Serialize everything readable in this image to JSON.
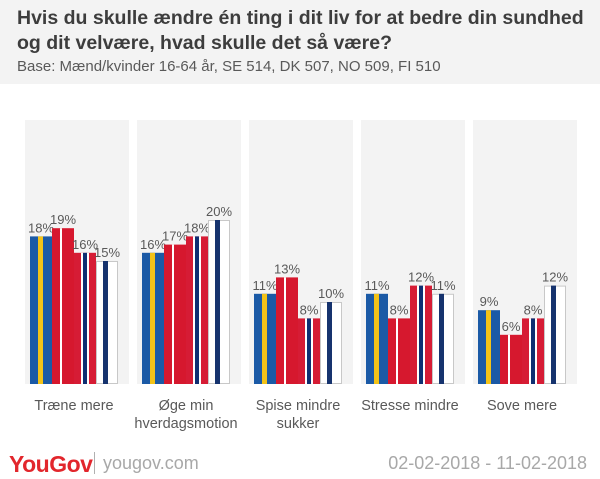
{
  "header": {
    "title": "Hvis du skulle ændre én ting i dit liv for at bedre din sundhed og dit velvære, hvad skulle det så være?",
    "subtitle": "Base: Mænd/kvinder 16-64 år, SE 514, DK 507, NO 509, FI 510"
  },
  "footer": {
    "logo": "YouGov",
    "url": "yougov.com",
    "date": "02-02-2018 - 11-02-2018"
  },
  "colors": {
    "se_blue": "#1b5aa6",
    "se_yellow": "#f3c318",
    "dk_red": "#d6182e",
    "no_red": "#d61c35",
    "no_blue": "#0f2f72",
    "fi_white": "#ffffff",
    "fi_blue": "#16336e",
    "label_text": "#595959",
    "panel_bg": "#f3f3f3"
  },
  "chart_data": {
    "type": "bar",
    "categories": [
      "Træne mere",
      "Øge min hverdagsmotion",
      "Spise mindre sukker",
      "Stresse mindre",
      "Sove mere"
    ],
    "category_lines": [
      [
        "Træne mere"
      ],
      [
        "Øge min",
        "hverdagsmotion"
      ],
      [
        "Spise mindre",
        "sukker"
      ],
      [
        "Stresse mindre"
      ],
      [
        "Sove mere"
      ]
    ],
    "series": [
      {
        "name": "SE",
        "values": [
          18,
          16,
          11,
          11,
          9
        ]
      },
      {
        "name": "DK",
        "values": [
          19,
          17,
          13,
          8,
          6
        ]
      },
      {
        "name": "NO",
        "values": [
          16,
          18,
          8,
          12,
          8
        ]
      },
      {
        "name": "FI",
        "values": [
          15,
          20,
          10,
          11,
          12
        ]
      }
    ],
    "value_labels": [
      [
        "18%",
        "19%",
        "16%",
        "15%"
      ],
      [
        "16%",
        "17%",
        "18%",
        "20%"
      ],
      [
        "11%",
        "13%",
        "8%",
        "10%"
      ],
      [
        "11%",
        "8%",
        "12%",
        "11%"
      ],
      [
        "9%",
        "6%",
        "8%",
        "12%"
      ]
    ],
    "ylim": [
      0,
      20
    ],
    "title": "Hvis du skulle ændre én ting i dit liv for at bedre din sundhed og dit velvære, hvad skulle det så være?",
    "xlabel": "",
    "ylabel": "",
    "legend": "none",
    "grid": false
  }
}
